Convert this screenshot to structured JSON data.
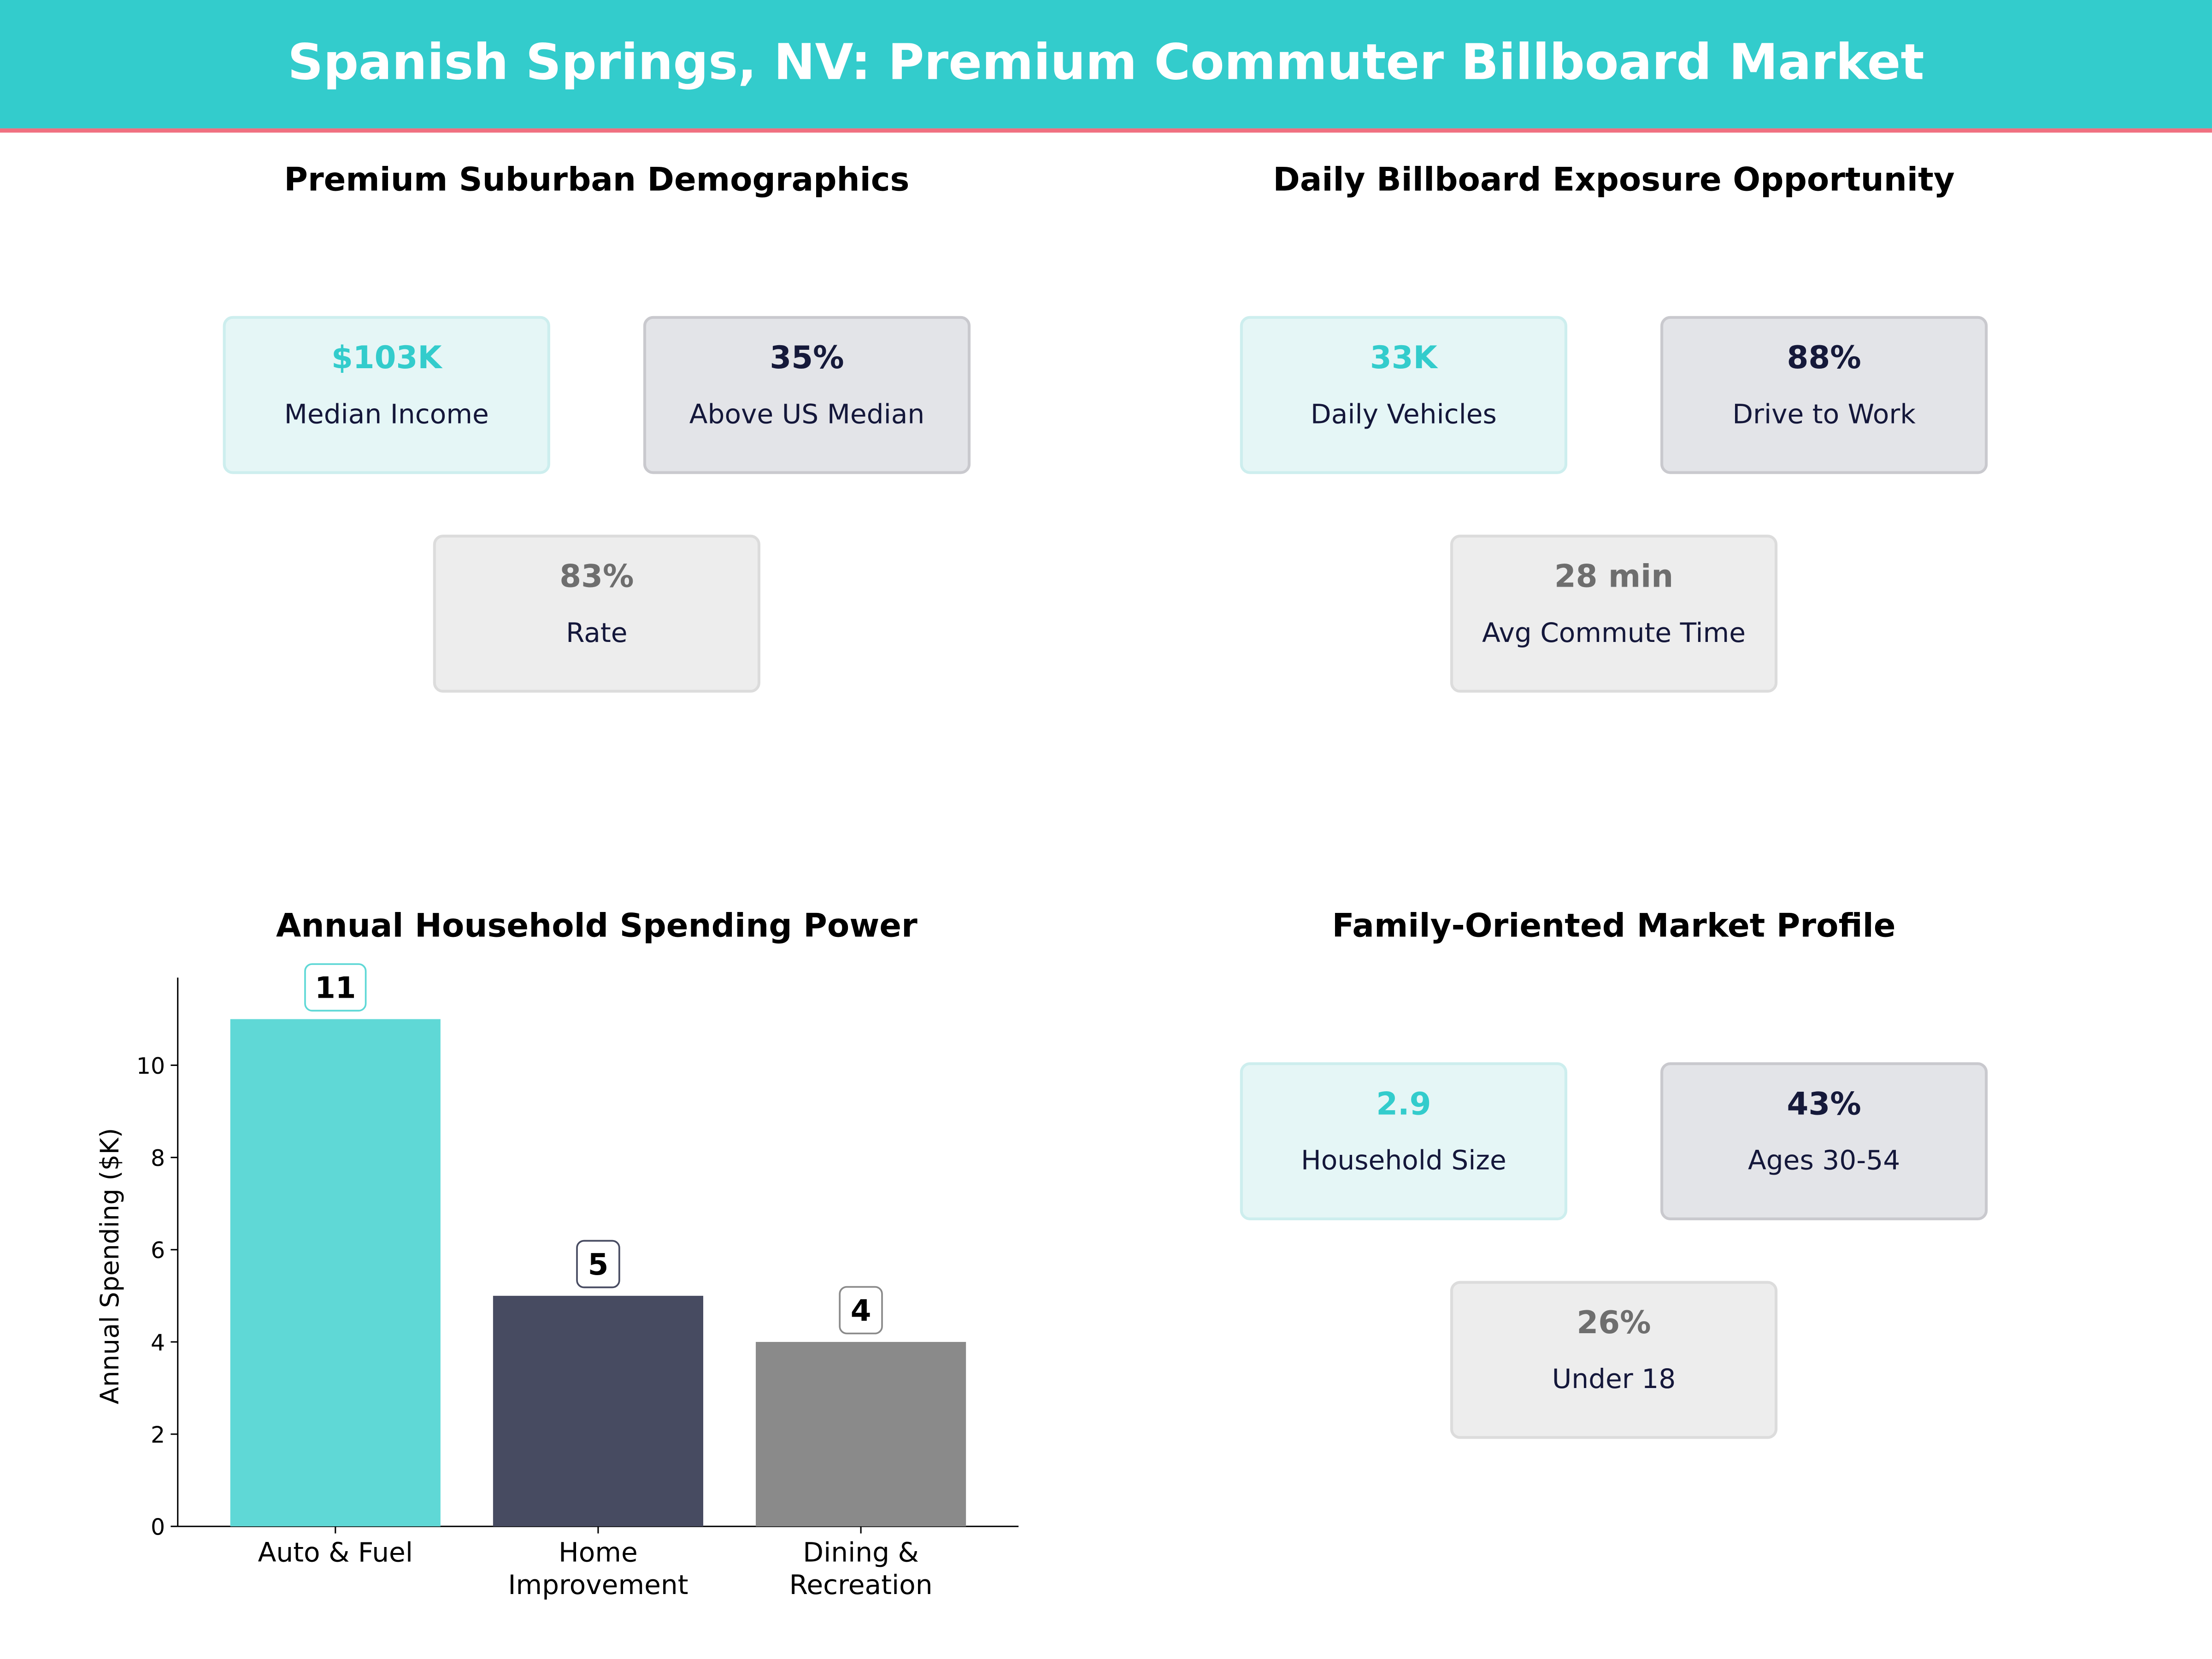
{
  "title": "Spanish Springs, NV: Premium Commuter Billboard Market",
  "colors": {
    "header": "#33CCCC",
    "accent_line": "#F07080",
    "teal": "#5FD8D6",
    "navy": "#474B61",
    "gray": "#8A8A8A"
  },
  "panels": {
    "demographics": {
      "title": "Premium Suburban Demographics",
      "cards": [
        {
          "value": "$103K",
          "label": "Median Income"
        },
        {
          "value": "35%",
          "label": "Above US Median"
        },
        {
          "value": "83%",
          "label": "Rate"
        }
      ]
    },
    "exposure": {
      "title": "Daily Billboard Exposure Opportunity",
      "cards": [
        {
          "value": "33K",
          "label": "Daily Vehicles"
        },
        {
          "value": "88%",
          "label": "Drive to Work"
        },
        {
          "value": "28 min",
          "label": "Avg Commute Time"
        }
      ]
    },
    "family": {
      "title": "Family-Oriented Market Profile",
      "cards": [
        {
          "value": "2.9",
          "label": "Household Size"
        },
        {
          "value": "43%",
          "label": "Ages 30-54"
        },
        {
          "value": "26%",
          "label": "Under 18"
        }
      ]
    }
  },
  "chart_data": {
    "type": "bar",
    "title": "Annual Household Spending Power",
    "categories": [
      [
        "Auto & Fuel"
      ],
      [
        "Home",
        "Improvement"
      ],
      [
        "Dining &",
        "Recreation"
      ]
    ],
    "values": [
      11,
      5,
      4
    ],
    "data_labels": [
      "11",
      "5",
      "4"
    ],
    "xlabel": "",
    "ylabel": "Annual Spending ($K)",
    "ylim": [
      0,
      11.9
    ],
    "yticks": [
      0,
      2,
      4,
      6,
      8,
      10
    ],
    "bar_colors": [
      "#5FD8D6",
      "#474B61",
      "#8A8A8A"
    ],
    "label_box_colors": [
      "#5FD8D6",
      "#474B61",
      "#8A8A8A"
    ],
    "grid": false
  }
}
